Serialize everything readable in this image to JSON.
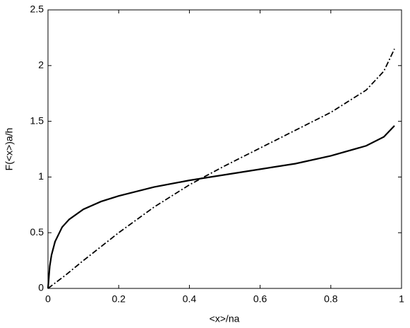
{
  "chart_data": {
    "type": "line",
    "x_label": "<x>/na",
    "y_label": "F(<x>)a/h",
    "xlim": [
      0,
      1
    ],
    "ylim": [
      0,
      2.5
    ],
    "xticks": [
      0,
      0.2,
      0.4,
      0.6,
      0.8,
      1
    ],
    "yticks": [
      0,
      0.5,
      1,
      1.5,
      2,
      2.5
    ],
    "grid": false,
    "series": [
      {
        "color": "#000000",
        "dash": "solid",
        "x": [
          0,
          0.005,
          0.01,
          0.02,
          0.04,
          0.06,
          0.1,
          0.15,
          0.2,
          0.3,
          0.4,
          0.5,
          0.6,
          0.7,
          0.8,
          0.9,
          0.95,
          0.98
        ],
        "values": [
          0,
          0.2,
          0.3,
          0.42,
          0.55,
          0.62,
          0.71,
          0.78,
          0.83,
          0.91,
          0.97,
          1.02,
          1.07,
          1.12,
          1.19,
          1.28,
          1.36,
          1.46
        ]
      },
      {
        "color": "#000000",
        "dash": "dashdot",
        "x": [
          0,
          0.05,
          0.1,
          0.2,
          0.3,
          0.4,
          0.5,
          0.6,
          0.7,
          0.8,
          0.9,
          0.95,
          0.98
        ],
        "values": [
          0,
          0.12,
          0.25,
          0.5,
          0.73,
          0.93,
          1.1,
          1.26,
          1.42,
          1.58,
          1.78,
          1.95,
          2.15
        ]
      }
    ]
  }
}
